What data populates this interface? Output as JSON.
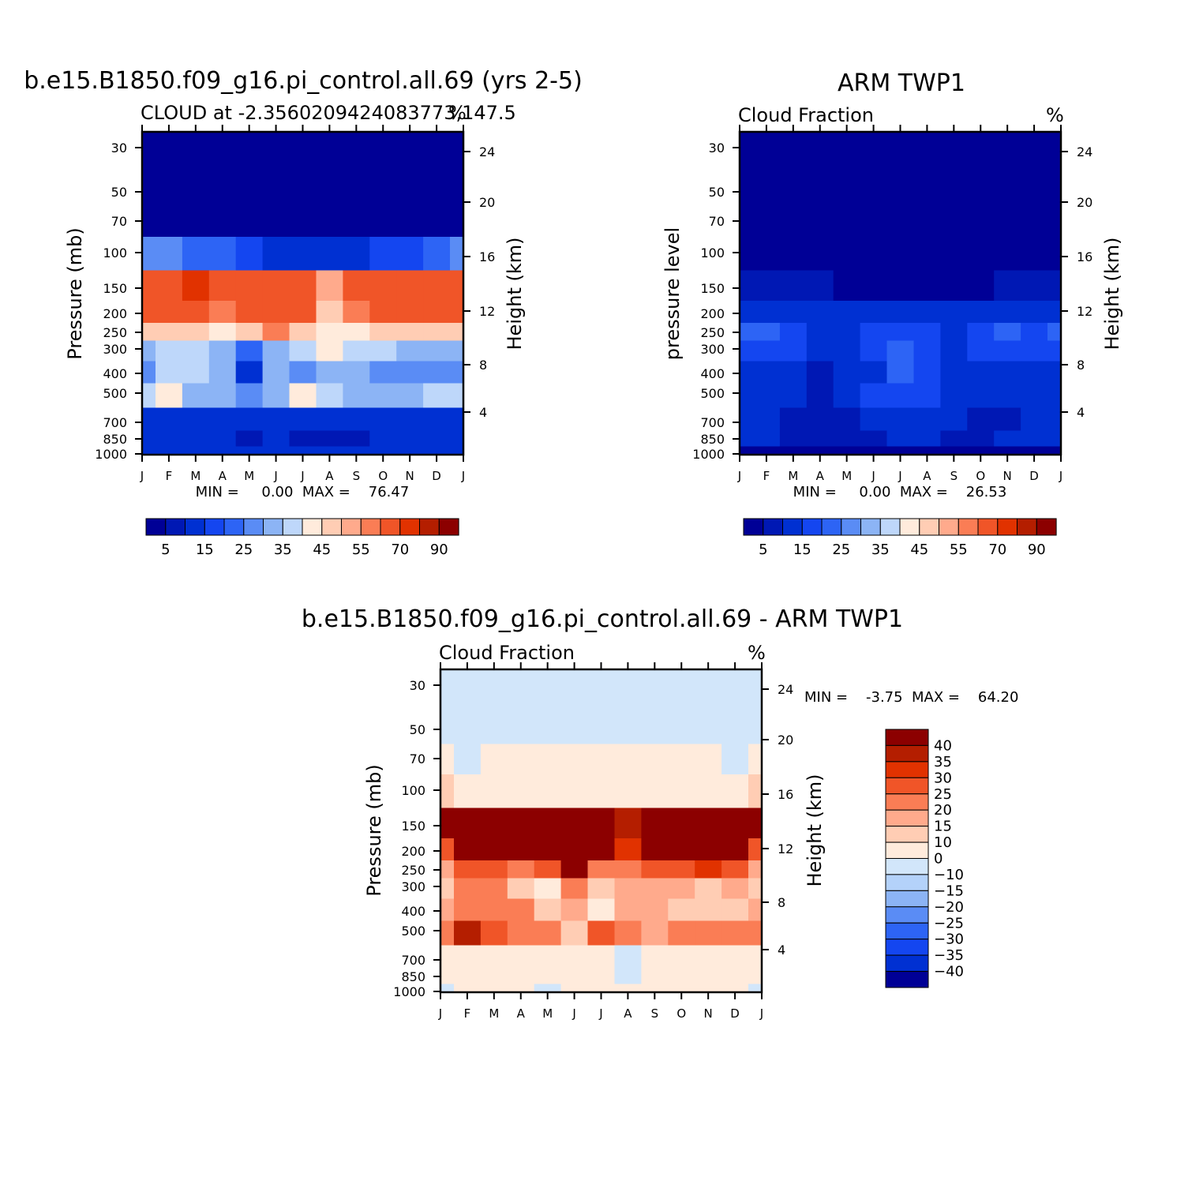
{
  "palette": {
    "cmap16": [
      "#000096",
      "#0018b4",
      "#0030d2",
      "#1446f0",
      "#2d64f5",
      "#5a8cf5",
      "#8cb4f5",
      "#bed7fa",
      "#ffebdc",
      "#ffcdb4",
      "#ffaa8c",
      "#fa7d55",
      "#f05528",
      "#e13200",
      "#b41e00",
      "#8c0000"
    ],
    "diff": {
      "d40": "#8c0000",
      "d35": "#b41e00",
      "d30": "#e13200",
      "d25": "#f05528",
      "d20": "#fa7d55",
      "d15": "#ffaa8c",
      "d10": "#ffcdb4",
      "d0": "#ffebdc",
      "dn": "#d2e6fa"
    }
  },
  "axis_common": {
    "months": [
      "J",
      "F",
      "M",
      "A",
      "M",
      "J",
      "J",
      "A",
      "S",
      "O",
      "N",
      "D",
      "J"
    ],
    "pressure_ticks": [
      "30",
      "50",
      "70",
      "100",
      "150",
      "200",
      "250",
      "300",
      "400",
      "500",
      "700",
      "850",
      "1000"
    ],
    "height_ticks": [
      "24",
      "20",
      "16",
      "12",
      "8",
      "4"
    ]
  },
  "chart_data": [
    {
      "id": "model",
      "type": "heatmap",
      "suptitle": "b.e15.B1850.f09_g16.pi_control.all.69 (yrs 2-5)",
      "subtitle": "CLOUD at -2.3560209424083773,147.5",
      "units": "%",
      "ylabel": "Pressure (mb)",
      "y2label": "Height (km)",
      "stats_label": "MIN =     0.00  MAX =    76.47",
      "min": 0.0,
      "max": 76.47,
      "contour_levels": [
        5,
        10,
        15,
        20,
        25,
        30,
        35,
        40,
        45,
        50,
        55,
        60,
        70,
        80,
        90
      ],
      "colorbar_labels": [
        "5",
        "15",
        "25",
        "35",
        "45",
        "55",
        "70",
        "90"
      ],
      "levels_mb": [
        30,
        50,
        70,
        100,
        150,
        200,
        250,
        300,
        400,
        500,
        700,
        850,
        1000
      ],
      "values": [
        [
          2,
          2,
          2,
          2,
          2,
          2,
          2,
          2,
          2,
          2,
          2,
          2,
          2
        ],
        [
          2,
          2,
          2,
          2,
          2,
          2,
          2,
          2,
          2,
          2,
          2,
          2,
          2
        ],
        [
          2,
          2,
          2,
          2,
          2,
          2,
          2,
          2,
          2,
          2,
          2,
          2,
          2
        ],
        [
          28,
          25,
          22,
          22,
          18,
          14,
          13,
          12,
          13,
          15,
          18,
          23,
          28
        ],
        [
          62,
          68,
          70,
          68,
          64,
          65,
          62,
          50,
          62,
          66,
          66,
          65,
          62
        ],
        [
          60,
          68,
          66,
          58,
          62,
          68,
          60,
          45,
          55,
          62,
          63,
          60,
          60
        ],
        [
          48,
          48,
          46,
          44,
          45,
          55,
          45,
          40,
          44,
          46,
          48,
          48,
          48
        ],
        [
          34,
          36,
          38,
          30,
          24,
          34,
          36,
          40,
          38,
          35,
          34,
          34,
          34
        ],
        [
          28,
          36,
          35,
          30,
          12,
          30,
          28,
          34,
          30,
          28,
          26,
          26,
          28
        ],
        [
          38,
          42,
          32,
          30,
          28,
          30,
          42,
          38,
          30,
          32,
          33,
          35,
          38
        ],
        [
          10,
          14,
          12,
          14,
          12,
          10,
          14,
          12,
          12,
          12,
          12,
          14,
          10
        ],
        [
          12,
          11,
          10,
          10,
          8,
          10,
          8,
          5,
          8,
          10,
          10,
          12,
          12
        ],
        [
          14,
          14,
          14,
          14,
          14,
          14,
          14,
          14,
          14,
          14,
          14,
          14,
          14
        ]
      ]
    },
    {
      "id": "obs",
      "type": "heatmap",
      "suptitle": "ARM TWP1",
      "subtitle": "Cloud Fraction",
      "units": "%",
      "ylabel": "pressure level",
      "y2label": "Height (km)",
      "stats_label": "MIN =     0.00  MAX =    26.53",
      "min": 0.0,
      "max": 26.53,
      "contour_levels": [
        5,
        10,
        15,
        20,
        25,
        30,
        35,
        40,
        45,
        50,
        55,
        60,
        70,
        80,
        90
      ],
      "colorbar_labels": [
        "5",
        "15",
        "25",
        "35",
        "45",
        "55",
        "70",
        "90"
      ],
      "levels_mb": [
        30,
        50,
        70,
        100,
        150,
        200,
        250,
        300,
        400,
        500,
        700,
        850,
        1000
      ],
      "values": [
        [
          1,
          1,
          1,
          1,
          1,
          1,
          1,
          1,
          1,
          1,
          1,
          1,
          1
        ],
        [
          1,
          1,
          1,
          1,
          1,
          1,
          1,
          1,
          1,
          1,
          1,
          1,
          1
        ],
        [
          1,
          1,
          1,
          1,
          1,
          1,
          1,
          1,
          1,
          1,
          1,
          1,
          1
        ],
        [
          2,
          2,
          2,
          2,
          2,
          2,
          2,
          2,
          2,
          2,
          2,
          2,
          2
        ],
        [
          8,
          6,
          6,
          5,
          4,
          4,
          4,
          4,
          4,
          4,
          5,
          6,
          8
        ],
        [
          12,
          13,
          13,
          14,
          12,
          12,
          13,
          13,
          13,
          13,
          12,
          12,
          12
        ],
        [
          22,
          20,
          18,
          14,
          14,
          15,
          18,
          15,
          14,
          18,
          22,
          15,
          22
        ],
        [
          18,
          18,
          17,
          14,
          14,
          15,
          24,
          15,
          14,
          16,
          17,
          16,
          18
        ],
        [
          13,
          14,
          13,
          8,
          13,
          14,
          20,
          15,
          13,
          14,
          13,
          13,
          13
        ],
        [
          13,
          13,
          12,
          8,
          12,
          15,
          17,
          16,
          13,
          12,
          14,
          13,
          13
        ],
        [
          13,
          11,
          8,
          6,
          9,
          12,
          13,
          12,
          10,
          8,
          8,
          10,
          13
        ],
        [
          12,
          11,
          9,
          9,
          8,
          9,
          11,
          12,
          9,
          8,
          10,
          12,
          12
        ],
        [
          3,
          3,
          3,
          3,
          3,
          3,
          3,
          3,
          3,
          3,
          3,
          3,
          3
        ]
      ]
    },
    {
      "id": "diff",
      "type": "heatmap",
      "suptitle": "b.e15.B1850.f09_g16.pi_control.all.69 - ARM TWP1",
      "subtitle": "Cloud Fraction",
      "units": "%",
      "ylabel": "Pressure (mb)",
      "y2label": "Height (km)",
      "stats_label": "MIN =    -3.75  MAX =    64.20",
      "min": -3.75,
      "max": 64.2,
      "contour_levels": [
        -40,
        -35,
        -30,
        -25,
        -20,
        -15,
        -10,
        0,
        10,
        15,
        20,
        25,
        30,
        35,
        40
      ],
      "colorbar_labels": [
        "40",
        "35",
        "30",
        "25",
        "20",
        "15",
        "10",
        "0",
        "−10",
        "−15",
        "−20",
        "−25",
        "−30",
        "−35",
        "−40"
      ],
      "levels_mb": [
        30,
        50,
        70,
        100,
        150,
        200,
        250,
        300,
        400,
        500,
        700,
        850,
        1000
      ],
      "values": [
        [
          -1,
          -1,
          -1,
          -1,
          -1,
          -1,
          -1,
          -1,
          -1,
          -1,
          -1,
          -1,
          -1
        ],
        [
          -1,
          -1,
          -1,
          -1,
          -1,
          -1,
          -1,
          -1,
          -1,
          -1,
          -1,
          -1,
          -1
        ],
        [
          1,
          -1,
          2,
          3,
          1,
          1,
          1,
          1,
          1,
          1,
          1,
          -1,
          1
        ],
        [
          10,
          9,
          8,
          8,
          8,
          8,
          8,
          8,
          8,
          8,
          8,
          9,
          10
        ],
        [
          55,
          62,
          64,
          62,
          58,
          60,
          58,
          35,
          55,
          60,
          60,
          58,
          55
        ],
        [
          28,
          42,
          50,
          44,
          50,
          58,
          42,
          32,
          42,
          46,
          48,
          42,
          28
        ],
        [
          18,
          28,
          28,
          24,
          26,
          40,
          24,
          22,
          26,
          28,
          30,
          28,
          18
        ],
        [
          12,
          20,
          22,
          14,
          6,
          20,
          10,
          18,
          18,
          16,
          14,
          18,
          12
        ],
        [
          16,
          22,
          22,
          20,
          12,
          16,
          6,
          18,
          16,
          14,
          12,
          14,
          16
        ],
        [
          22,
          36,
          28,
          24,
          24,
          14,
          26,
          20,
          18,
          22,
          20,
          22,
          22
        ],
        [
          3,
          4,
          4,
          4,
          3,
          2,
          3,
          -1,
          3,
          3,
          2,
          2,
          3
        ],
        [
          1,
          1,
          1,
          1,
          1,
          1,
          1,
          -1,
          1,
          1,
          1,
          1,
          1
        ],
        [
          -1,
          1,
          1,
          1,
          -1,
          1,
          1,
          1,
          1,
          1,
          1,
          1,
          -1
        ]
      ]
    }
  ]
}
